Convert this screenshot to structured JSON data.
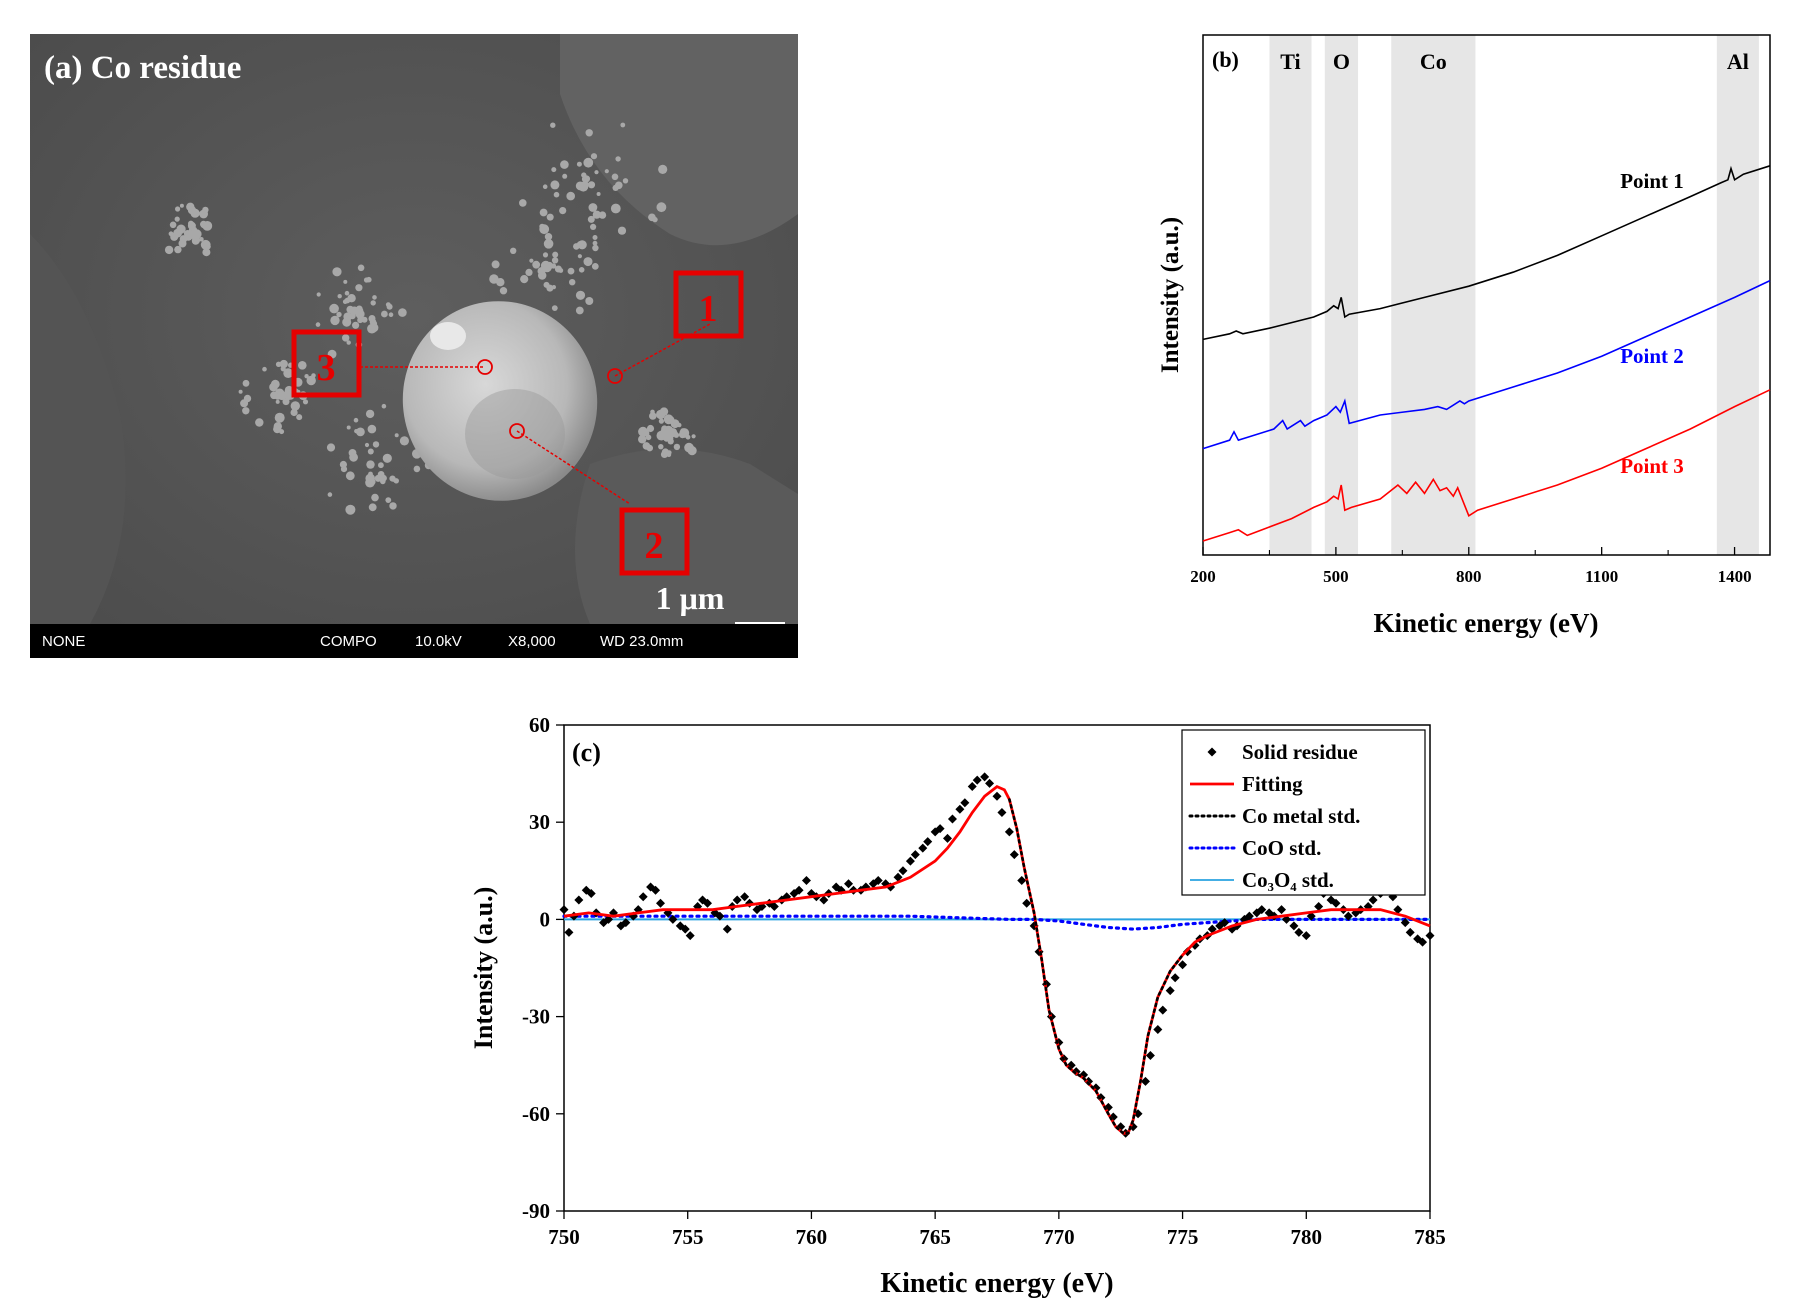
{
  "panel_a": {
    "title": "(a) Co residue",
    "point_labels": [
      "1",
      "2",
      "3"
    ],
    "scale_bar": "1 μm",
    "info_bar": {
      "signal": "NONE",
      "mode": "COMPO",
      "voltage": "10.0kV",
      "magnification": "X8,000",
      "working_distance": "WD 23.0mm"
    },
    "colors": {
      "marker": "#e60000"
    }
  },
  "chart_data": [
    {
      "panel": "(b)",
      "type": "line",
      "xlabel": "Kinetic energy (eV)",
      "ylabel": "Intensity (a.u.)",
      "xlim": [
        200,
        1480
      ],
      "x_ticks": [
        200,
        500,
        800,
        1100,
        1400
      ],
      "region_labels": [
        {
          "name": "Ti",
          "range": [
            350,
            445
          ]
        },
        {
          "name": "O",
          "range": [
            475,
            550
          ]
        },
        {
          "name": "Co",
          "range": [
            625,
            815
          ]
        },
        {
          "name": "Al",
          "range": [
            1360,
            1455
          ]
        }
      ],
      "series": [
        {
          "name": "Point 1",
          "color": "#000000",
          "x": [
            200,
            260,
            275,
            290,
            350,
            400,
            450,
            480,
            495,
            505,
            512,
            520,
            530,
            600,
            700,
            800,
            900,
            1000,
            1100,
            1200,
            1300,
            1370,
            1385,
            1392,
            1400,
            1420,
            1480
          ],
          "y": [
            0.77,
            0.79,
            0.8,
            0.79,
            0.81,
            0.83,
            0.85,
            0.87,
            0.89,
            0.88,
            0.92,
            0.85,
            0.86,
            0.88,
            0.92,
            0.96,
            1.01,
            1.07,
            1.14,
            1.21,
            1.28,
            1.33,
            1.34,
            1.38,
            1.34,
            1.36,
            1.39
          ]
        },
        {
          "name": "Point 2",
          "color": "#0000ff",
          "x": [
            200,
            260,
            270,
            280,
            300,
            360,
            380,
            390,
            400,
            420,
            430,
            450,
            480,
            500,
            510,
            520,
            530,
            600,
            700,
            730,
            750,
            780,
            790,
            800,
            900,
            1000,
            1100,
            1200,
            1300,
            1400,
            1480
          ],
          "y": [
            0.38,
            0.41,
            0.44,
            0.41,
            0.42,
            0.45,
            0.48,
            0.45,
            0.46,
            0.48,
            0.46,
            0.48,
            0.5,
            0.53,
            0.51,
            0.55,
            0.47,
            0.5,
            0.52,
            0.53,
            0.52,
            0.55,
            0.54,
            0.55,
            0.6,
            0.65,
            0.71,
            0.78,
            0.85,
            0.92,
            0.98
          ]
        },
        {
          "name": "Point 3",
          "color": "#ff0000",
          "x": [
            200,
            260,
            280,
            300,
            350,
            400,
            450,
            480,
            495,
            505,
            512,
            520,
            535,
            600,
            640,
            660,
            680,
            700,
            720,
            735,
            750,
            765,
            775,
            785,
            800,
            820,
            900,
            1000,
            1100,
            1200,
            1300,
            1400,
            1480
          ],
          "y": [
            0.05,
            0.08,
            0.09,
            0.07,
            0.1,
            0.13,
            0.17,
            0.19,
            0.21,
            0.2,
            0.25,
            0.16,
            0.17,
            0.2,
            0.25,
            0.22,
            0.26,
            0.22,
            0.27,
            0.23,
            0.24,
            0.21,
            0.24,
            0.2,
            0.14,
            0.16,
            0.2,
            0.25,
            0.31,
            0.38,
            0.45,
            0.53,
            0.59
          ]
        }
      ]
    },
    {
      "panel": "(c)",
      "type": "scatter",
      "xlabel": "Kinetic energy (eV)",
      "ylabel": "Intensity (a.u.)",
      "xlim": [
        750,
        785
      ],
      "ylim": [
        -90,
        60
      ],
      "x_ticks": [
        750,
        755,
        760,
        765,
        770,
        775,
        780,
        785
      ],
      "y_ticks": [
        60,
        30,
        0,
        -30,
        -60,
        -90
      ],
      "legend": {
        "position": "top-right",
        "entries": [
          "Solid residue",
          "Fitting",
          "Co metal std.",
          "CoO std.",
          "Co₃O₄ std."
        ]
      },
      "series": [
        {
          "name": "Solid residue",
          "style": "diamond",
          "color": "#000000",
          "x": [
            750.0,
            750.2,
            750.4,
            750.6,
            750.9,
            751.1,
            751.3,
            751.6,
            751.8,
            752.0,
            752.3,
            752.5,
            752.8,
            753.0,
            753.2,
            753.5,
            753.7,
            753.9,
            754.2,
            754.4,
            754.7,
            754.9,
            755.1,
            755.4,
            755.6,
            755.8,
            756.1,
            756.3,
            756.6,
            756.8,
            757.0,
            757.3,
            757.5,
            757.8,
            758.0,
            758.3,
            758.5,
            758.8,
            759.0,
            759.3,
            759.5,
            759.8,
            760.0,
            760.2,
            760.5,
            760.7,
            761.0,
            761.2,
            761.5,
            761.7,
            762.0,
            762.2,
            762.5,
            762.7,
            763.0,
            763.2,
            763.5,
            763.7,
            764.0,
            764.2,
            764.5,
            764.7,
            765.0,
            765.2,
            765.5,
            765.7,
            766.0,
            766.2,
            766.5,
            766.7,
            767.0,
            767.2,
            767.5,
            767.7,
            768.0,
            768.2,
            768.5,
            768.7,
            769.0,
            769.2,
            769.5,
            769.7,
            770.0,
            770.2,
            770.5,
            770.7,
            771.0,
            771.2,
            771.5,
            771.7,
            772.0,
            772.2,
            772.5,
            772.7,
            773.0,
            773.2,
            773.5,
            773.7,
            774.0,
            774.2,
            774.5,
            774.7,
            775.0,
            775.2,
            775.5,
            775.7,
            776.0,
            776.2,
            776.5,
            776.7,
            777.0,
            777.2,
            777.5,
            777.7,
            778.0,
            778.2,
            778.5,
            778.7,
            779.0,
            779.2,
            779.5,
            779.7,
            780.0,
            780.2,
            780.5,
            780.7,
            781.0,
            781.2,
            781.5,
            781.7,
            782.0,
            782.2,
            782.5,
            782.7,
            783.0,
            783.2,
            783.5,
            783.7,
            784.0,
            784.2,
            784.5,
            784.7,
            785.0
          ],
          "y": [
            3,
            -4,
            1,
            6,
            9,
            8,
            2,
            -1,
            0,
            2,
            -2,
            -1,
            1,
            3,
            7,
            10,
            9,
            5,
            2,
            0,
            -2,
            -3,
            -5,
            4,
            6,
            5,
            2,
            1,
            -3,
            4,
            6,
            7,
            5,
            3,
            4,
            5,
            4,
            6,
            7,
            8,
            9,
            12,
            8,
            7,
            6,
            8,
            10,
            9,
            11,
            9,
            9,
            10,
            11,
            12,
            11,
            10,
            13,
            15,
            18,
            20,
            22,
            24,
            27,
            28,
            25,
            31,
            34,
            36,
            41,
            43,
            44,
            42,
            38,
            33,
            27,
            20,
            12,
            5,
            -2,
            -10,
            -20,
            -30,
            -38,
            -43,
            -45,
            -47,
            -48,
            -50,
            -52,
            -55,
            -58,
            -61,
            -64,
            -66,
            -64,
            -60,
            -50,
            -42,
            -34,
            -28,
            -22,
            -18,
            -14,
            -10,
            -8,
            -6,
            -5,
            -3,
            -2,
            -1,
            -3,
            -2,
            0,
            1,
            2,
            3,
            2,
            1,
            3,
            0,
            -2,
            -4,
            -5,
            1,
            4,
            8,
            6,
            5,
            3,
            1,
            2,
            3,
            4,
            6,
            8,
            9,
            7,
            3,
            -1,
            -4,
            -6,
            -7,
            -5
          ]
        },
        {
          "name": "Fitting",
          "style": "line",
          "color": "#ff0000",
          "x": [
            750,
            751,
            752,
            753,
            754,
            755,
            756,
            757,
            758,
            759,
            760,
            761,
            762,
            763,
            764,
            765,
            765.5,
            766,
            766.5,
            767,
            767.5,
            767.8,
            768,
            768.3,
            768.6,
            769,
            769.3,
            769.6,
            770,
            770.3,
            770.6,
            771,
            771.5,
            772,
            772.3,
            772.6,
            772.8,
            773,
            773.3,
            773.6,
            774,
            774.5,
            775,
            775.5,
            776,
            777,
            778,
            779,
            780,
            781,
            782,
            783,
            784,
            785
          ],
          "y": [
            1,
            2,
            1,
            2,
            3,
            3,
            3,
            4,
            5,
            6,
            7,
            8,
            9,
            10,
            13,
            18,
            22,
            27,
            33,
            38,
            41,
            40,
            37,
            28,
            16,
            2,
            -12,
            -28,
            -40,
            -45,
            -47,
            -49,
            -53,
            -60,
            -64,
            -66,
            -66,
            -62,
            -50,
            -36,
            -24,
            -16,
            -11,
            -7,
            -5,
            -2,
            0,
            1,
            2,
            3,
            3,
            3,
            1,
            -2
          ]
        },
        {
          "name": "Co metal std.",
          "style": "dotted",
          "color": "#000000",
          "x": [
            768,
            768.3,
            768.6,
            769,
            769.3,
            769.6,
            770,
            770.3,
            770.6,
            771,
            771.5,
            772,
            772.3,
            772.6,
            772.8,
            773,
            773.3,
            773.6,
            774,
            774.5,
            775
          ],
          "y": [
            37,
            28,
            16,
            2,
            -12,
            -28,
            -40,
            -45,
            -47,
            -49,
            -53,
            -60,
            -64,
            -66,
            -66,
            -62,
            -50,
            -36,
            -24,
            -16,
            -11
          ]
        },
        {
          "name": "CoO std.",
          "style": "dotted",
          "color": "#0000ff",
          "x": [
            750,
            752,
            754,
            756,
            758,
            760,
            762,
            764,
            766,
            768,
            769,
            770,
            771,
            772,
            773,
            774,
            775,
            776,
            777,
            778,
            779,
            780,
            782,
            784,
            785
          ],
          "y": [
            1,
            1,
            1,
            1,
            1,
            1,
            1,
            1,
            0.5,
            0,
            0,
            -0.5,
            -1.5,
            -2.5,
            -3,
            -2.5,
            -1.5,
            -1,
            -0.5,
            0,
            0,
            0,
            0,
            0,
            0
          ]
        },
        {
          "name": "Co₃O₄ std.",
          "style": "line",
          "color": "#29a3e0",
          "x": [
            750,
            785
          ],
          "y": [
            0,
            0
          ]
        }
      ]
    }
  ]
}
